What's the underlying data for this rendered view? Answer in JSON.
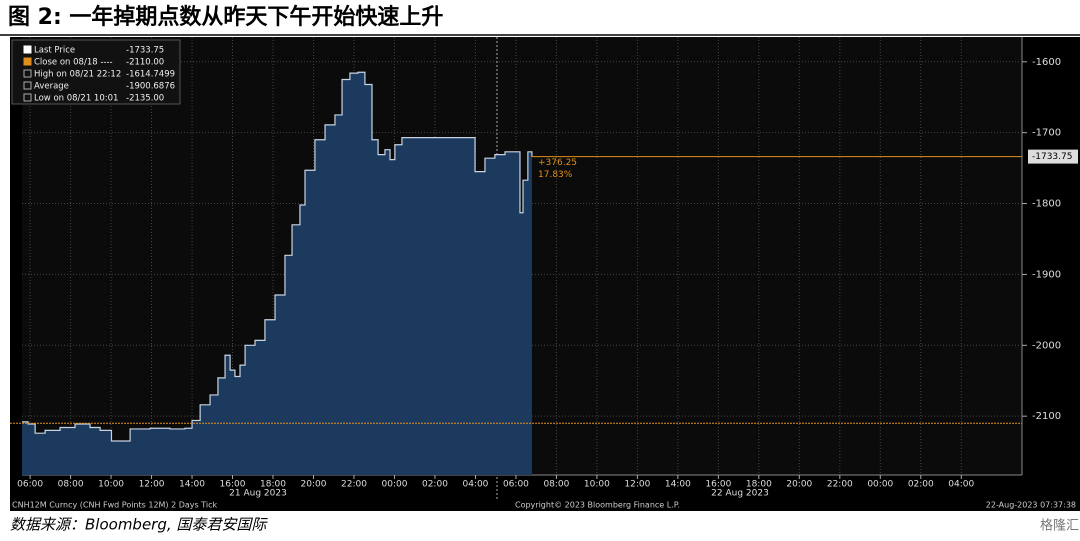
{
  "title": "图 2:   一年掉期点数从昨天下午开始快速上升",
  "source": "数据来源：Bloomberg, 国泰君安国际",
  "watermark": "格隆汇",
  "chart_data": {
    "type": "area",
    "legend": [
      {
        "label": "Last Price",
        "value": "-1733.75"
      },
      {
        "label": "Close on 08/18 ----",
        "value": "-2110.00"
      },
      {
        "label": "High on 08/21 22:12",
        "value": "-1614.7499"
      },
      {
        "label": "Average",
        "value": "-1900.6876"
      },
      {
        "label": "Low on 08/21 10:01",
        "value": "-2135.00"
      }
    ],
    "x": [
      5.6,
      5.9,
      6.25,
      6.74,
      7.48,
      8.22,
      8.96,
      9.46,
      10.02,
      10.94,
      11.93,
      12.91,
      13.65,
      14.0,
      14.4,
      14.89,
      15.28,
      15.63,
      15.88,
      16.12,
      16.37,
      16.62,
      17.11,
      17.6,
      18.1,
      18.59,
      18.94,
      19.33,
      19.58,
      20.07,
      20.57,
      21.06,
      21.41,
      21.8,
      22.2,
      22.54,
      22.89,
      23.19,
      23.53,
      23.78,
      24.02,
      24.37,
      25.26,
      26.25,
      27.73,
      27.98,
      28.47,
      28.96,
      29.46,
      29.95,
      30.2,
      30.35,
      30.59,
      30.79
    ],
    "series": [
      {
        "name": "Last Price",
        "color": "#c8d4e4",
        "fill": "#1b3a5e",
        "values": [
          -2108,
          -2111,
          -2124,
          -2120,
          -2116,
          -2111,
          -2116,
          -2120,
          -2135,
          -2118,
          -2117,
          -2118,
          -2117,
          -2106,
          -2084,
          -2070,
          -2046,
          -2014,
          -2035,
          -2044,
          -2028,
          -2000,
          -1993,
          -1964,
          -1929,
          -1873,
          -1830,
          -1802,
          -1753,
          -1710,
          -1689,
          -1675,
          -1625,
          -1616,
          -1614.75,
          -1632,
          -1710,
          -1731,
          -1724,
          -1738,
          -1717,
          -1707,
          -1707,
          -1707,
          -1707,
          -1755,
          -1736,
          -1731,
          -1727,
          -1727,
          -1813,
          -1767,
          -1727,
          -1733.75
        ]
      }
    ],
    "close": -2110,
    "last": -1733.75,
    "last_label": "-1733.75",
    "change_labels": [
      "+376.25",
      "17.83%"
    ],
    "xlim": [
      5.6,
      55
    ],
    "ylim": [
      -2183,
      -1565
    ],
    "yticks": [
      -2100,
      -2000,
      -1900,
      -1800,
      -1700,
      -1600
    ],
    "xticks": [
      {
        "value": 6,
        "label": "06:00"
      },
      {
        "value": 8,
        "label": "08:00"
      },
      {
        "value": 10,
        "label": "10:00"
      },
      {
        "value": 12,
        "label": "12:00"
      },
      {
        "value": 14,
        "label": "14:00"
      },
      {
        "value": 16,
        "label": "16:00"
      },
      {
        "value": 18,
        "label": "18:00"
      },
      {
        "value": 20,
        "label": "20:00"
      },
      {
        "value": 22,
        "label": "22:00"
      },
      {
        "value": 24,
        "label": "00:00"
      },
      {
        "value": 26,
        "label": "02:00"
      },
      {
        "value": 28,
        "label": "04:00"
      },
      {
        "value": 30,
        "label": "06:00"
      },
      {
        "value": 32,
        "label": "08:00"
      },
      {
        "value": 34,
        "label": "10:00"
      },
      {
        "value": 36,
        "label": "12:00"
      },
      {
        "value": 38,
        "label": "14:00"
      },
      {
        "value": 40,
        "label": "16:00"
      },
      {
        "value": 42,
        "label": "18:00"
      },
      {
        "value": 44,
        "label": "20:00"
      },
      {
        "value": 46,
        "label": "22:00"
      },
      {
        "value": 48,
        "label": "00:00"
      },
      {
        "value": 50,
        "label": "02:00"
      },
      {
        "value": 52,
        "label": "04:00"
      }
    ],
    "date_labels": [
      "21 Aug 2023",
      "22 Aug 2023"
    ],
    "footer": [
      "CNH12M Curncy (CNH Fwd Points 12M) 2 Days  Tick",
      "Copyright© 2023 Bloomberg Finance L.P.",
      "22-Aug-2023 07:37:38"
    ],
    "grid": true
  }
}
